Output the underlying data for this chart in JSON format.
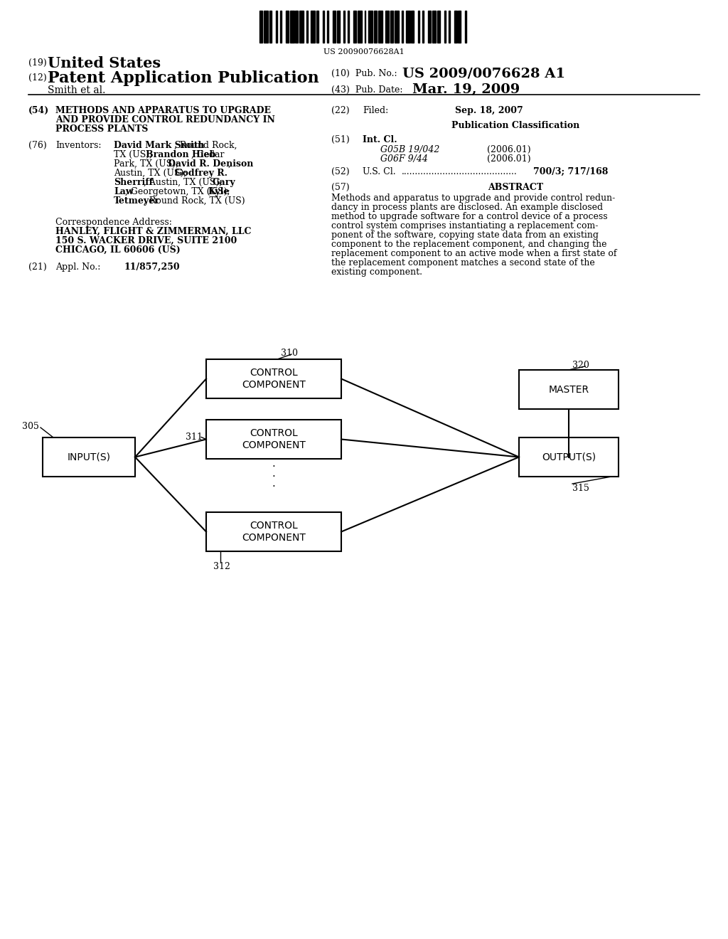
{
  "background_color": "#ffffff",
  "barcode_text": "US 20090076628A1",
  "header_19_small": "(19)",
  "header_19_large": "United States",
  "header_12_small": "(12)",
  "header_12_large": "Patent Application Publication",
  "header_author": "Smith et al.",
  "pub_no_label": "(10)  Pub. No.:",
  "pub_no_value": "US 2009/0076628 A1",
  "pub_date_label": "(43)  Pub. Date:",
  "pub_date_value": "Mar. 19, 2009",
  "f54_label": "(54)",
  "f54_lines": [
    "METHODS AND APPARATUS TO UPGRADE",
    "AND PROVIDE CONTROL REDUNDANCY IN",
    "PROCESS PLANTS"
  ],
  "f76_label": "(76)",
  "f76_name": "Inventors:",
  "inv_lines": [
    [
      [
        "David Mark Smith",
        true
      ],
      [
        ", Round Rock,",
        false
      ]
    ],
    [
      [
        "TX (US); ",
        false
      ],
      [
        "Brandon Hieb",
        true
      ],
      [
        ", Cedar",
        false
      ]
    ],
    [
      [
        "Park, TX (US); ",
        false
      ],
      [
        "David R. Denison",
        true
      ],
      [
        ",",
        false
      ]
    ],
    [
      [
        "Austin, TX (US); ",
        false
      ],
      [
        "Godfrey R.",
        true
      ]
    ],
    [
      [
        "Sherriff",
        true
      ],
      [
        ", Austin, TX (US); ",
        false
      ],
      [
        "Gary",
        true
      ]
    ],
    [
      [
        "Law",
        true
      ],
      [
        ", Georgetown, TX (US); ",
        false
      ],
      [
        "Kyle",
        true
      ]
    ],
    [
      [
        "Tetmeyer",
        true
      ],
      [
        ", Round Rock, TX (US)",
        false
      ]
    ]
  ],
  "corr_label": "Correspondence Address:",
  "corr_lines": [
    "HANLEY, FLIGHT & ZIMMERMAN, LLC",
    "150 S. WACKER DRIVE, SUITE 2100",
    "CHICAGO, IL 60606 (US)"
  ],
  "f21_label": "(21)",
  "f21_name": "Appl. No.:",
  "f21_value": "11/857,250",
  "f22_label": "(22)",
  "f22_name": "Filed:",
  "f22_value": "Sep. 18, 2007",
  "pub_class": "Publication Classification",
  "f51_label": "(51)",
  "f51_name": "Int. Cl.",
  "f51_code1": "G05B 19/042",
  "f51_yr1": "(2006.01)",
  "f51_code2": "G06F 9/44",
  "f51_yr2": "(2006.01)",
  "f52_label": "(52)",
  "f52_name": "U.S. Cl.",
  "f52_dots": "..........................................",
  "f52_value": "700/3; 717/168",
  "f57_label": "(57)",
  "f57_name": "ABSTRACT",
  "abs_lines": [
    "Methods and apparatus to upgrade and provide control redun-",
    "dancy in process plants are disclosed. An example disclosed",
    "method to upgrade software for a control device of a process",
    "control system comprises instantiating a replacement com-",
    "ponent of the software, copying state data from an existing",
    "component to the replacement component, and changing the",
    "replacement component to an active mode when a first state of",
    "the replacement component matches a second state of the",
    "existing component."
  ],
  "diag": {
    "inp_label": "INPUT(S)",
    "inp_num": "305",
    "out_label": "OUTPUT(S)",
    "out_num": "315",
    "mst_label": "MASTER",
    "mst_num": "320",
    "cc1_label": "CONTROL\nCOMPONENT",
    "cc1_num": "310",
    "cc2_label": "CONTROL\nCOMPONENT",
    "cc2_num": "311",
    "cc3_label": "CONTROL\nCOMPONENT",
    "cc3_num": "312"
  }
}
